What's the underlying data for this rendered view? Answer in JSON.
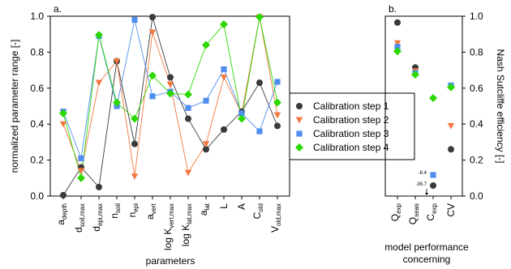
{
  "chart_data": [
    {
      "panel": "a.",
      "type": "line",
      "xlabel": "parameters",
      "ylabel": "normalized parameter range [-]",
      "ylim": [
        0,
        1
      ],
      "yticks": [
        "0.0",
        "0.2",
        "0.4",
        "0.6",
        "0.8",
        "1.0"
      ],
      "grid": false,
      "categories": [
        {
          "base": "a",
          "sub": "depth"
        },
        {
          "base": "d",
          "sub": "soil,max"
        },
        {
          "base": "d",
          "sub": "epi,max"
        },
        {
          "base": "n",
          "sub": "soil"
        },
        {
          "base": "n",
          "sub": "epi"
        },
        {
          "base": "a",
          "sub": "vert"
        },
        {
          "base": "log K",
          "sub": "vert,max"
        },
        {
          "base": "log K",
          "sub": "lat,max"
        },
        {
          "base": "a",
          "sub": "lat"
        },
        {
          "base": "L",
          "sub": ""
        },
        {
          "base": "A",
          "sub": ""
        },
        {
          "base": "C",
          "sub": "old"
        },
        {
          "base": "V",
          "sub": "old,max"
        }
      ],
      "series": [
        {
          "name": "Calibration step 1",
          "color": "#3a3a3a",
          "marker": "circle",
          "values": [
            0.005,
            0.16,
            0.05,
            0.75,
            0.29,
            0.995,
            0.66,
            0.43,
            0.26,
            0.37,
            0.47,
            0.63,
            0.39
          ]
        },
        {
          "name": "Calibration step 2",
          "color": "#f4773f",
          "marker": "triangle-down",
          "values": [
            0.4,
            0.14,
            0.63,
            0.75,
            0.11,
            0.91,
            0.62,
            0.13,
            0.29,
            0.66,
            0.46,
            0.995,
            0.45
          ]
        },
        {
          "name": "Calibration step 3",
          "color": "#4f8ef0",
          "marker": "square",
          "values": [
            0.47,
            0.21,
            0.89,
            0.5,
            0.98,
            0.555,
            0.58,
            0.49,
            0.53,
            0.705,
            0.46,
            0.36,
            0.635
          ]
        },
        {
          "name": "Calibration step 4",
          "color": "#2bd900",
          "marker": "diamond",
          "values": [
            0.46,
            0.1,
            0.895,
            0.52,
            0.43,
            0.67,
            0.57,
            0.565,
            0.84,
            0.955,
            0.43,
            0.995,
            0.52
          ]
        }
      ]
    },
    {
      "panel": "b.",
      "type": "scatter",
      "xlabel": "model performance concerning",
      "ylabel": "Nash Sutcliffe efficiency [-]",
      "ylim": [
        0,
        1
      ],
      "yticks": [
        "0.0",
        "0.2",
        "0.4",
        "0.6",
        "0.8",
        "1.0"
      ],
      "grid": false,
      "categories": [
        {
          "base": "Q",
          "sub": "exp"
        },
        {
          "base": "Q",
          "sub": "seas"
        },
        {
          "base": "C",
          "sub": "exp"
        },
        {
          "base": "CV",
          "sub": ""
        }
      ],
      "series": [
        {
          "name": "Calibration step 1",
          "values": [
            0.965,
            0.715,
            null,
            0.26
          ]
        },
        {
          "name": "Calibration step 2",
          "values": [
            0.85,
            0.695,
            null,
            0.39
          ]
        },
        {
          "name": "Calibration step 3",
          "values": [
            0.83,
            0.685,
            null,
            0.615
          ]
        },
        {
          "name": "Calibration step 4",
          "values": [
            0.805,
            0.675,
            0.545,
            0.605
          ]
        }
      ],
      "annotations": [
        {
          "text": "-8.4",
          "series": "Calibration step 3",
          "category": "Cexp"
        },
        {
          "text": "-36.7",
          "series": "Calibration step 1",
          "category": "Cexp"
        }
      ]
    }
  ]
}
